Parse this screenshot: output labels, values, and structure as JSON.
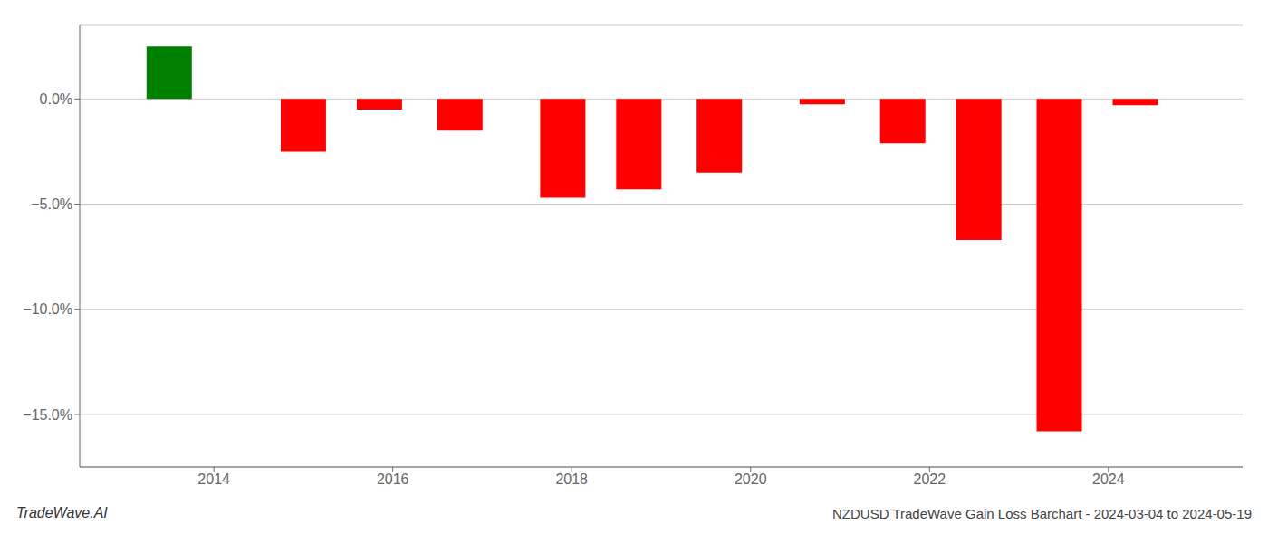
{
  "chart_data": {
    "type": "bar",
    "title": "NZDUSD TradeWave Gain Loss Barchart - 2024-03-04 to 2024-05-19",
    "annotations": [
      "TradeWave.AI"
    ],
    "x": [
      2013.5,
      2015.0,
      2015.85,
      2016.75,
      2017.9,
      2018.75,
      2019.65,
      2020.8,
      2021.7,
      2022.55,
      2023.45,
      2024.3
    ],
    "values": [
      2.5,
      -2.5,
      -0.5,
      -1.5,
      -4.7,
      -4.3,
      -3.5,
      -0.25,
      -2.1,
      -6.7,
      -15.8,
      -0.3
    ],
    "colors": [
      "#008000",
      "#ff0000",
      "#ff0000",
      "#ff0000",
      "#ff0000",
      "#ff0000",
      "#ff0000",
      "#ff0000",
      "#ff0000",
      "#ff0000",
      "#ff0000",
      "#ff0000"
    ],
    "xlim": [
      2012.5,
      2025.5
    ],
    "xticks": [
      2014,
      2016,
      2018,
      2020,
      2022,
      2024
    ],
    "ylim": [
      -17.5,
      3.5
    ],
    "yticks": [
      {
        "value": 0.0,
        "label": "0.0%"
      },
      {
        "value": -5.0,
        "label": "−5.0%"
      },
      {
        "value": -10.0,
        "label": "−10.0%"
      },
      {
        "value": -15.0,
        "label": "−15.0%"
      }
    ],
    "grid": true
  }
}
